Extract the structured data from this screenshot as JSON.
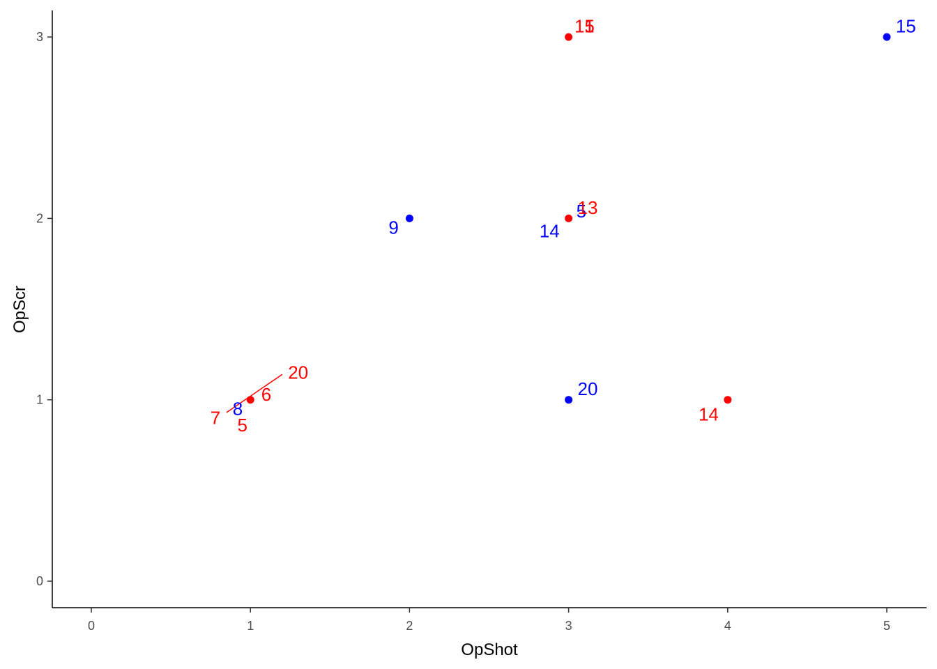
{
  "chart_data": {
    "type": "scatter",
    "xlabel": "OpShot",
    "ylabel": "OpScr",
    "xlim": [
      -0.25,
      5.25
    ],
    "ylim": [
      -0.15,
      3.15
    ],
    "x_ticks": [
      0,
      1,
      2,
      3,
      4,
      5
    ],
    "y_ticks": [
      0,
      1,
      2,
      3
    ],
    "x_tick_labels": [
      "0",
      "1",
      "2",
      "3",
      "4",
      "5"
    ],
    "y_tick_labels": [
      "0",
      "1",
      "2",
      "3"
    ],
    "grid": false,
    "legend": "none",
    "colors": {
      "blue": "#0000ff",
      "red": "#ff0000"
    },
    "points": [
      {
        "x": 3,
        "y": 3,
        "color": "red"
      },
      {
        "x": 5,
        "y": 3,
        "color": "blue"
      },
      {
        "x": 2,
        "y": 2,
        "color": "blue"
      },
      {
        "x": 3,
        "y": 2,
        "color": "red"
      },
      {
        "x": 1,
        "y": 1,
        "color": "red"
      },
      {
        "x": 3,
        "y": 1,
        "color": "blue"
      },
      {
        "x": 4,
        "y": 1,
        "color": "red"
      }
    ],
    "labels": [
      {
        "text": "15",
        "x": 5.12,
        "y": 3.06,
        "color": "blue"
      },
      {
        "text": "1",
        "x": 3.13,
        "y": 3.06,
        "color": "blue"
      },
      {
        "text": "15",
        "x": 3.1,
        "y": 3.06,
        "color": "red"
      },
      {
        "text": "1",
        "x": 3.13,
        "y": 3.06,
        "color": "red"
      },
      {
        "text": "9",
        "x": 1.9,
        "y": 1.95,
        "color": "blue"
      },
      {
        "text": "14",
        "x": 2.88,
        "y": 1.93,
        "color": "blue"
      },
      {
        "text": "5",
        "x": 3.08,
        "y": 2.04,
        "color": "blue"
      },
      {
        "text": "13",
        "x": 3.12,
        "y": 2.06,
        "color": "red"
      },
      {
        "text": "20",
        "x": 1.3,
        "y": 1.15,
        "color": "red"
      },
      {
        "text": "6",
        "x": 1.1,
        "y": 1.03,
        "color": "red"
      },
      {
        "text": "8",
        "x": 0.92,
        "y": 0.95,
        "color": "blue"
      },
      {
        "text": "7",
        "x": 0.78,
        "y": 0.9,
        "color": "red"
      },
      {
        "text": "5",
        "x": 0.95,
        "y": 0.86,
        "color": "red"
      },
      {
        "text": "20",
        "x": 3.12,
        "y": 1.06,
        "color": "blue"
      },
      {
        "text": "14",
        "x": 3.88,
        "y": 0.92,
        "color": "red"
      }
    ],
    "segments": [
      {
        "x1": 0.85,
        "y1": 0.93,
        "x2": 1.2,
        "y2": 1.14,
        "color": "red"
      }
    ]
  }
}
